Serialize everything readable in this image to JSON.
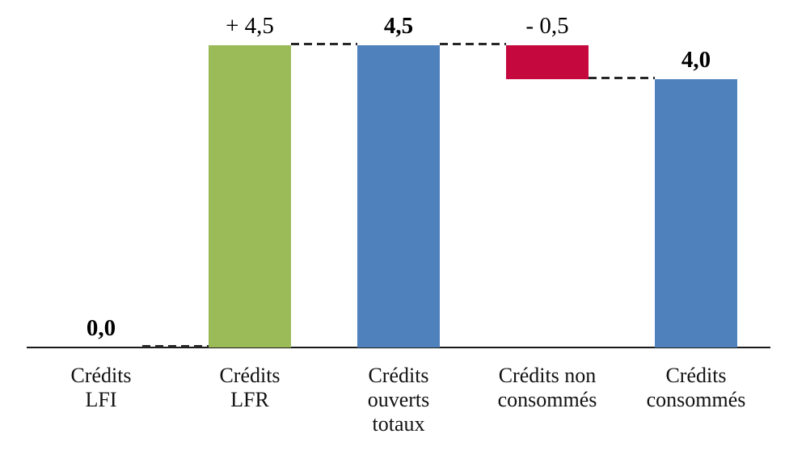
{
  "chart_data": {
    "type": "bar",
    "subtype": "waterfall",
    "title": "",
    "xlabel": "",
    "ylabel": "",
    "legend": "none",
    "gridlines": false,
    "categories": [
      "Crédits LFI",
      "Crédits LFR",
      "Crédits ouverts totaux",
      "Crédits non consommés",
      "Crédits consommés"
    ],
    "items": [
      {
        "name": "credits-lfi",
        "category_lines": [
          "Crédits",
          "LFI"
        ],
        "start": 0.0,
        "end": 0.0,
        "value": 0.0,
        "data_label": "0,0",
        "label_bold": true,
        "bar_color": null,
        "role": "base"
      },
      {
        "name": "credits-lfr",
        "category_lines": [
          "Crédits",
          "LFR"
        ],
        "start": 0.0,
        "end": 4.5,
        "value": 4.5,
        "data_label": "+ 4,5",
        "label_bold": false,
        "bar_color": "#9BBB59",
        "role": "increase"
      },
      {
        "name": "credits-ouverts-totaux",
        "category_lines": [
          "Crédits",
          "ouverts",
          "totaux"
        ],
        "start": 0.0,
        "end": 4.5,
        "value": 4.5,
        "data_label": "4,5",
        "label_bold": true,
        "bar_color": "#4F81BD",
        "role": "total"
      },
      {
        "name": "credits-non-consommes",
        "category_lines": [
          "Crédits non",
          "consommés"
        ],
        "start": 4.0,
        "end": 4.5,
        "value": -0.5,
        "data_label": "- 0,5",
        "label_bold": false,
        "bar_color": "#C5093F",
        "role": "decrease"
      },
      {
        "name": "credits-consommes",
        "category_lines": [
          "Crédits",
          "consommés"
        ],
        "start": 0.0,
        "end": 4.0,
        "value": 4.0,
        "data_label": "4,0",
        "label_bold": true,
        "bar_color": "#4F81BD",
        "role": "total"
      }
    ],
    "connectors": [
      {
        "from": 0,
        "to": 1,
        "level": 0.0
      },
      {
        "from": 1,
        "to": 2,
        "level": 4.5
      },
      {
        "from": 2,
        "to": 3,
        "level": 4.5
      },
      {
        "from": 3,
        "to": 4,
        "level": 4.0
      }
    ],
    "axis": {
      "baseline_value": 0.0,
      "max_value": 4.5,
      "line_color": "#1A1A1A"
    },
    "colors": {
      "increase": "#9BBB59",
      "total": "#4F81BD",
      "decrease": "#C5093F",
      "connector": "#262626",
      "text": "#000000"
    }
  }
}
